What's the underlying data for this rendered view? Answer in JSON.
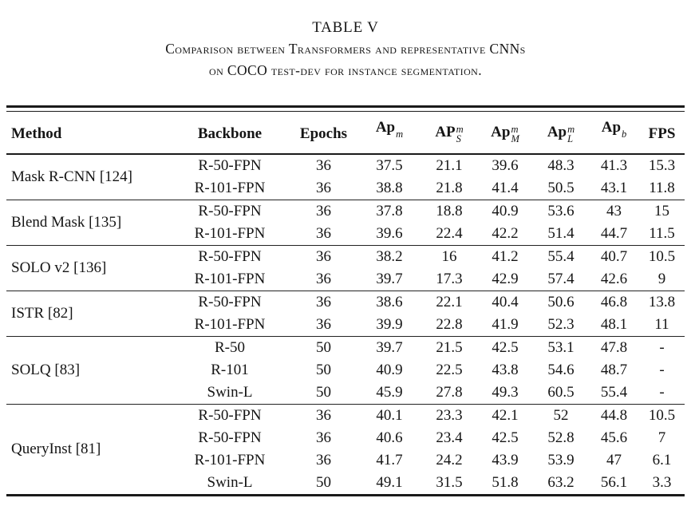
{
  "caption": {
    "title": "TABLE V",
    "line1": "Comparison between Transformers and representative CNNs",
    "line2": "on COCO test-dev for instance segmentation."
  },
  "table": {
    "headers": {
      "method": "Method",
      "backbone": "Backbone",
      "epochs": "Epochs",
      "fps": "FPS"
    },
    "metric_headers": [
      {
        "base": "Ap",
        "sup": "m",
        "sub": ""
      },
      {
        "base": "AP",
        "sup": "m",
        "sub": "S"
      },
      {
        "base": "Ap",
        "sup": "m",
        "sub": "M"
      },
      {
        "base": "Ap",
        "sup": "m",
        "sub": "L"
      },
      {
        "base": "Ap",
        "sup": "b",
        "sub": ""
      }
    ],
    "groups": [
      {
        "method": "Mask R-CNN [124]",
        "rows": [
          [
            "R-50-FPN",
            "36",
            "37.5",
            "21.1",
            "39.6",
            "48.3",
            "41.3",
            "15.3"
          ],
          [
            "R-101-FPN",
            "36",
            "38.8",
            "21.8",
            "41.4",
            "50.5",
            "43.1",
            "11.8"
          ]
        ]
      },
      {
        "method": "Blend Mask [135]",
        "rows": [
          [
            "R-50-FPN",
            "36",
            "37.8",
            "18.8",
            "40.9",
            "53.6",
            "43",
            "15"
          ],
          [
            "R-101-FPN",
            "36",
            "39.6",
            "22.4",
            "42.2",
            "51.4",
            "44.7",
            "11.5"
          ]
        ]
      },
      {
        "method": "SOLO v2 [136]",
        "rows": [
          [
            "R-50-FPN",
            "36",
            "38.2",
            "16",
            "41.2",
            "55.4",
            "40.7",
            "10.5"
          ],
          [
            "R-101-FPN",
            "36",
            "39.7",
            "17.3",
            "42.9",
            "57.4",
            "42.6",
            "9"
          ]
        ]
      },
      {
        "method": "ISTR [82]",
        "rows": [
          [
            "R-50-FPN",
            "36",
            "38.6",
            "22.1",
            "40.4",
            "50.6",
            "46.8",
            "13.8"
          ],
          [
            "R-101-FPN",
            "36",
            "39.9",
            "22.8",
            "41.9",
            "52.3",
            "48.1",
            "11"
          ]
        ]
      },
      {
        "method": "SOLQ [83]",
        "rows": [
          [
            "R-50",
            "50",
            "39.7",
            "21.5",
            "42.5",
            "53.1",
            "47.8",
            "-"
          ],
          [
            "R-101",
            "50",
            "40.9",
            "22.5",
            "43.8",
            "54.6",
            "48.7",
            "-"
          ],
          [
            "Swin-L",
            "50",
            "45.9",
            "27.8",
            "49.3",
            "60.5",
            "55.4",
            "-"
          ]
        ]
      },
      {
        "method": "QueryInst [81]",
        "rows": [
          [
            "R-50-FPN",
            "36",
            "40.1",
            "23.3",
            "42.1",
            "52",
            "44.8",
            "10.5"
          ],
          [
            "R-50-FPN",
            "36",
            "40.6",
            "23.4",
            "42.5",
            "52.8",
            "45.6",
            "7"
          ],
          [
            "R-101-FPN",
            "36",
            "41.7",
            "24.2",
            "43.9",
            "53.9",
            "47",
            "6.1"
          ],
          [
            "Swin-L",
            "50",
            "49.1",
            "31.5",
            "51.8",
            "63.2",
            "56.1",
            "3.3"
          ]
        ]
      }
    ]
  }
}
